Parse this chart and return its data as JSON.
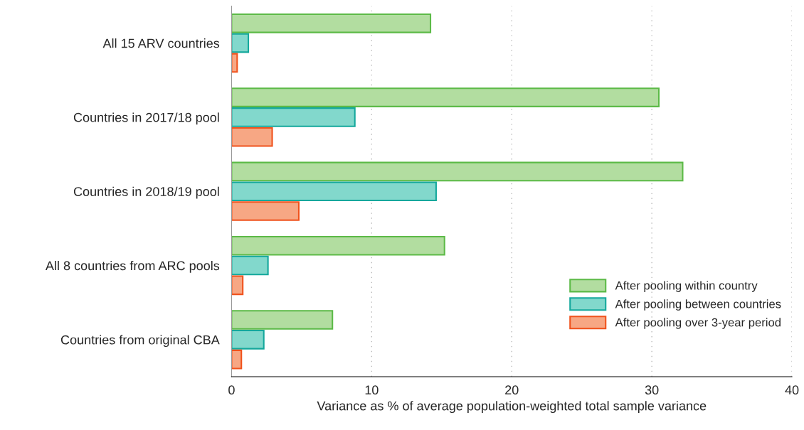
{
  "chart_data": {
    "type": "bar",
    "orientation": "horizontal",
    "xlabel": "Variance as % of average population-weighted total sample variance",
    "categories": [
      "All 15 ARV countries",
      "Countries in 2017/18 pool",
      "Countries in 2018/19 pool",
      "All 8 countries from ARC pools",
      "Countries from original CBA"
    ],
    "series": [
      {
        "name": "After pooling within country",
        "color": "#b2dda0",
        "values": [
          14.2,
          30.5,
          32.2,
          15.2,
          7.2
        ]
      },
      {
        "name": "After pooling between countries",
        "color": "#82d8cc",
        "values": [
          1.2,
          8.8,
          14.6,
          2.6,
          2.3
        ]
      },
      {
        "name": "After pooling over 3-year period",
        "color": "#f7a784",
        "values": [
          0.4,
          2.9,
          4.8,
          0.8,
          0.7
        ]
      }
    ],
    "xlim": [
      0,
      40
    ],
    "xticks": [
      0,
      10,
      20,
      30,
      40
    ],
    "grid": "x",
    "legend": "bottom right"
  }
}
